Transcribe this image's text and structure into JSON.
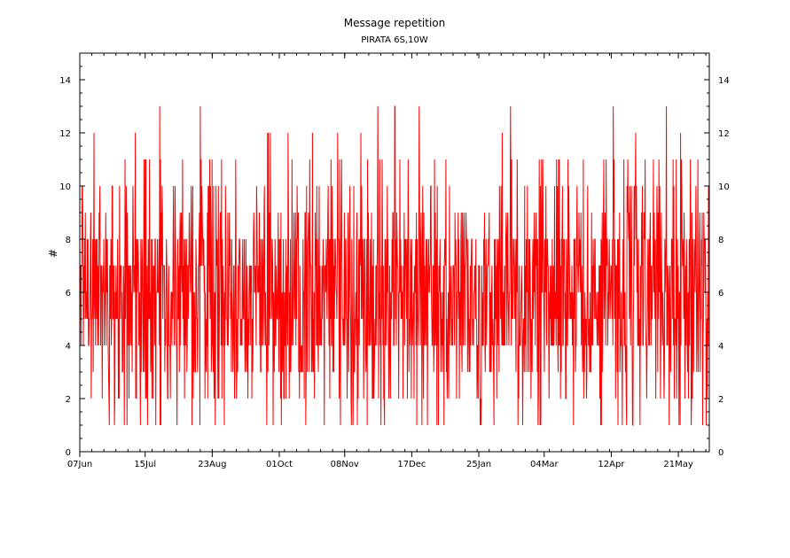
{
  "chart_data": {
    "type": "line",
    "title": "Message repetition",
    "subtitle": "PIRATA 6S,10W",
    "xlabel": "",
    "ylabel": "#",
    "x_ticks": [
      "07Jun",
      "15Jul",
      "23Aug",
      "01Oct",
      "08Nov",
      "17Dec",
      "25Jan",
      "04Mar",
      "12Apr",
      "21May"
    ],
    "x_tick_days": [
      0,
      38,
      77,
      116,
      154,
      193,
      232,
      270,
      309,
      348
    ],
    "xlim_days": [
      0,
      366
    ],
    "ylim": [
      0,
      15
    ],
    "y_ticks": [
      0,
      2,
      4,
      6,
      8,
      10,
      12,
      14
    ],
    "grid": false,
    "series": [
      {
        "color": "#ff0000",
        "approx_range": [
          1,
          13
        ],
        "typical_range": [
          3,
          9
        ]
      }
    ]
  }
}
